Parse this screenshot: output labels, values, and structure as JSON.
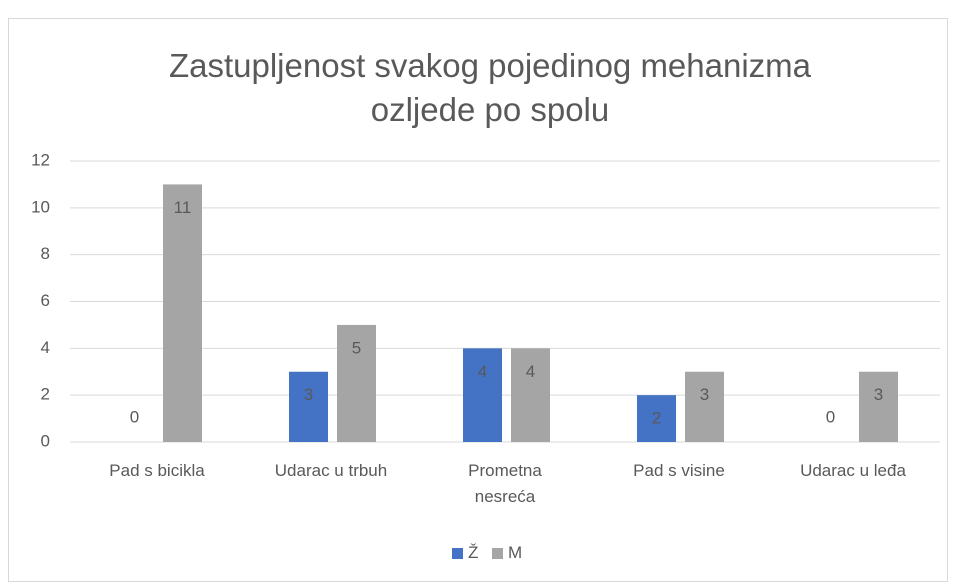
{
  "chart_data": {
    "type": "bar",
    "title": "Zastupljenost svakog pojedinog mehanizma ozljede po spolu",
    "categories": [
      "Pad s bicikla",
      "Udarac u trbuh",
      "Prometna nesreća",
      "Pad s visine",
      "Udarac u leđa"
    ],
    "series": [
      {
        "name": "Ž",
        "color": "#4472c4",
        "values": [
          0,
          3,
          4,
          2,
          0
        ]
      },
      {
        "name": "M",
        "color": "#a5a5a5",
        "values": [
          11,
          5,
          4,
          3,
          3
        ]
      }
    ],
    "ylim": [
      0,
      12
    ],
    "yticks": [
      0,
      2,
      4,
      6,
      8,
      10,
      12
    ],
    "grid": true,
    "legend": "bottom"
  }
}
